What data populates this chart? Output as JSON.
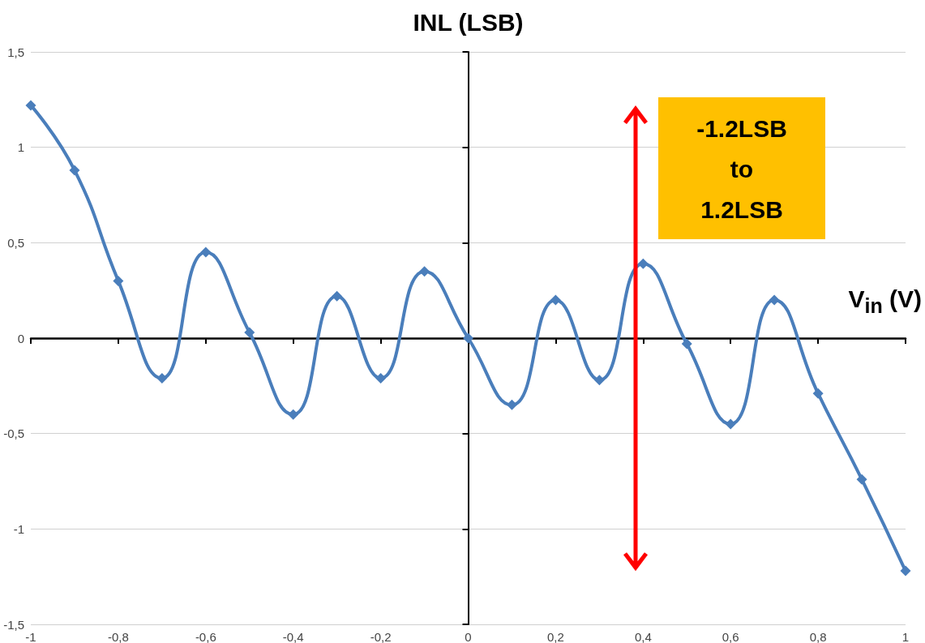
{
  "chart_data": {
    "type": "line",
    "xlabel": "V$_{in}$ (V)",
    "ylabel": "INL (LSB)",
    "x": [
      -1,
      -0.9,
      -0.8,
      -0.7,
      -0.6,
      -0.5,
      -0.4,
      -0.3,
      -0.2,
      -0.1,
      0,
      0.1,
      0.2,
      0.3,
      0.4,
      0.5,
      0.6,
      0.7,
      0.8,
      0.9,
      1
    ],
    "series": [
      {
        "color": "#4a7ebb",
        "values": [
          1.22,
          0.88,
          0.3,
          -0.21,
          0.45,
          0.03,
          -0.4,
          0.22,
          -0.21,
          0.35,
          0,
          -0.35,
          0.2,
          -0.22,
          0.39,
          -0.03,
          -0.45,
          0.2,
          -0.29,
          -0.74,
          -1.22
        ]
      }
    ],
    "xlim": [
      -1,
      1
    ],
    "xticks": [
      {
        "value": -1,
        "label": "-1"
      },
      {
        "value": -0.8,
        "label": "-0,8"
      },
      {
        "value": -0.6,
        "label": "-0,6"
      },
      {
        "value": -0.4,
        "label": "-0,4"
      },
      {
        "value": -0.2,
        "label": "-0,2"
      },
      {
        "value": 0,
        "label": "0"
      },
      {
        "value": 0.2,
        "label": "0,2"
      },
      {
        "value": 0.4,
        "label": "0,4"
      },
      {
        "value": 0.6,
        "label": "0,6"
      },
      {
        "value": 0.8,
        "label": "0,8"
      },
      {
        "value": 1,
        "label": "1"
      }
    ],
    "ylim": [
      -1.5,
      1.5
    ],
    "yticks": [
      {
        "value": -1.5,
        "label": "-1,5"
      },
      {
        "value": -1,
        "label": "-1"
      },
      {
        "value": -0.5,
        "label": "-0,5"
      },
      {
        "value": 0,
        "label": "0"
      },
      {
        "value": 0.5,
        "label": "0,5"
      },
      {
        "value": 1,
        "label": "1"
      },
      {
        "value": 1.5,
        "label": "1,5"
      }
    ],
    "grid": "y",
    "marker": "diamond",
    "line_style": "solid",
    "annotations": [
      "-1.2LSB to 1.2LSB"
    ]
  }
}
